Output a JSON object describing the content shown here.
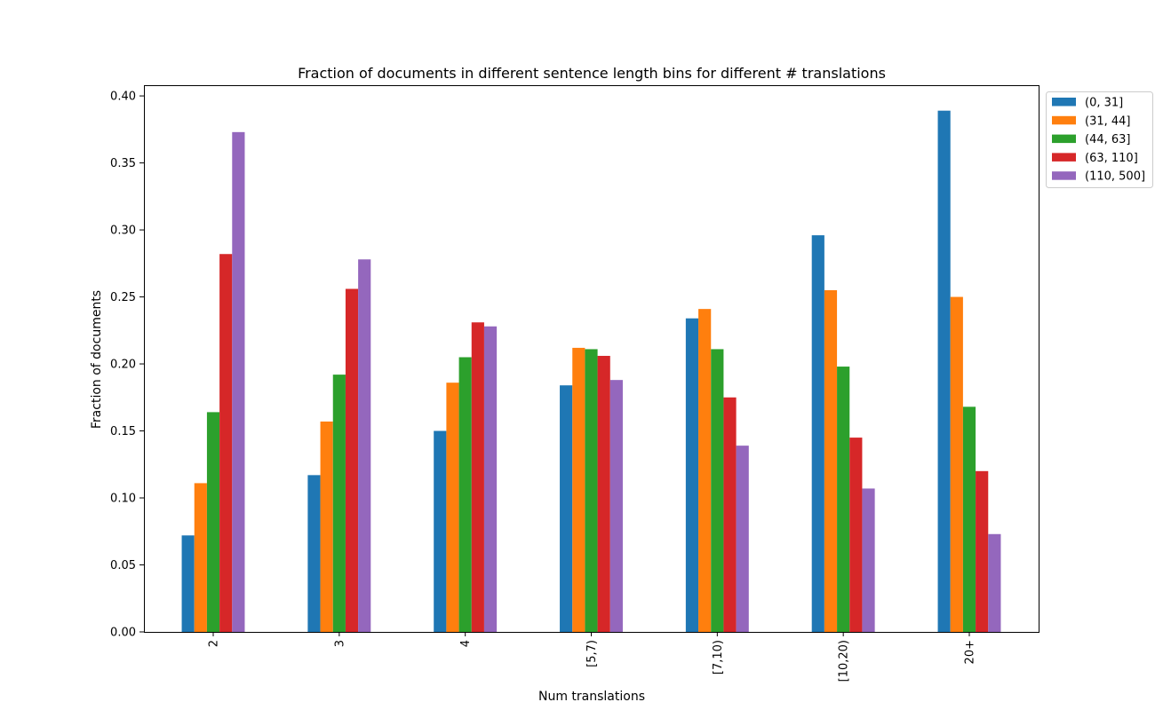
{
  "chart_data": {
    "type": "bar",
    "title": "Fraction of documents in different sentence length bins for different # translations",
    "xlabel": "Num translations",
    "ylabel": "Fraction of documents",
    "categories": [
      "2",
      "3",
      "4",
      "[5,7)",
      "[7,10)",
      "[10,20)",
      "20+"
    ],
    "ylim": [
      0,
      0.408
    ],
    "yticks": [
      0.0,
      0.05,
      0.1,
      0.15,
      0.2,
      0.25,
      0.3,
      0.35,
      0.4
    ],
    "ytick_labels": [
      "0.00",
      "0.05",
      "0.10",
      "0.15",
      "0.20",
      "0.25",
      "0.30",
      "0.35",
      "0.40"
    ],
    "grid": false,
    "legend": "upper right, outside plot",
    "series": [
      {
        "name": "(0, 31]",
        "color": "#1f77b4",
        "values": [
          0.072,
          0.117,
          0.15,
          0.184,
          0.234,
          0.296,
          0.389
        ]
      },
      {
        "name": "(31, 44]",
        "color": "#ff7f0e",
        "values": [
          0.111,
          0.157,
          0.186,
          0.212,
          0.241,
          0.255,
          0.25
        ]
      },
      {
        "name": "(44, 63]",
        "color": "#2ca02c",
        "values": [
          0.164,
          0.192,
          0.205,
          0.211,
          0.211,
          0.198,
          0.168
        ]
      },
      {
        "name": "(63, 110]",
        "color": "#d62728",
        "values": [
          0.282,
          0.256,
          0.231,
          0.206,
          0.175,
          0.145,
          0.12
        ]
      },
      {
        "name": "(110, 500]",
        "color": "#9467bd",
        "values": [
          0.373,
          0.278,
          0.228,
          0.188,
          0.139,
          0.107,
          0.073
        ]
      }
    ]
  }
}
